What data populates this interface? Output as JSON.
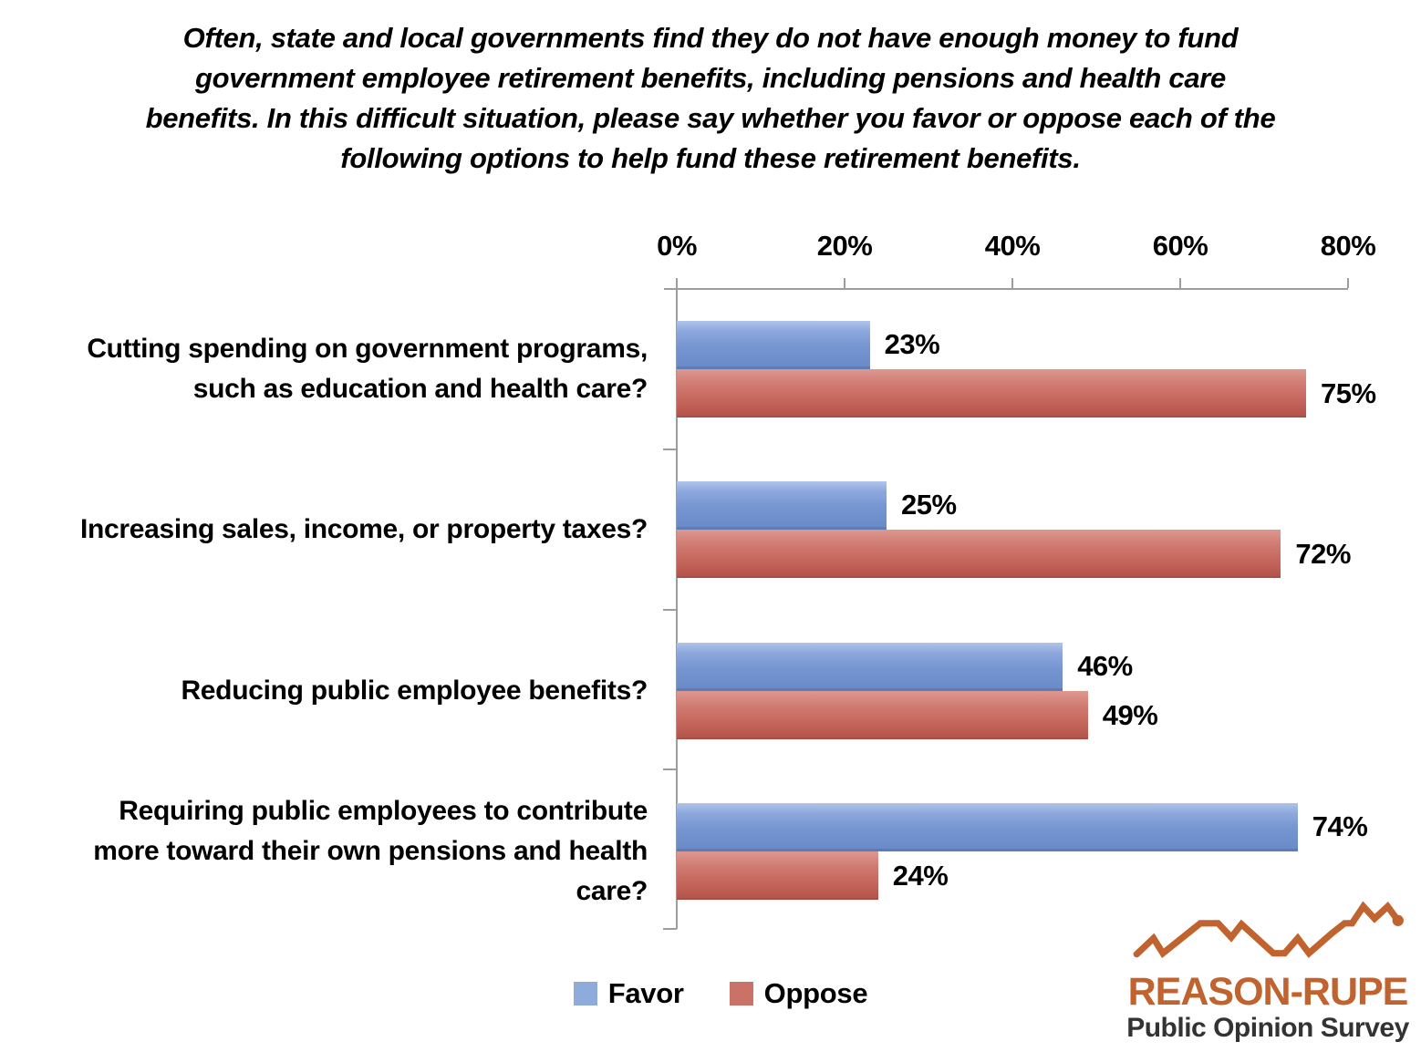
{
  "title_lines": [
    "Often, state and local governments find they do not have enough money to fund",
    "government employee retirement benefits, including pensions and health care",
    "benefits.  In this difficult situation, please say whether you favor or oppose each of the",
    "following options to help fund these retirement benefits."
  ],
  "chart_data": {
    "type": "bar",
    "orientation": "horizontal",
    "categories": [
      "Cutting spending on government programs, such as education and health care?",
      "Increasing sales, income, or property taxes?",
      "Reducing public employee benefits?",
      "Requiring public employees to contribute more toward their own pensions and health care?"
    ],
    "category_lines": [
      [
        "Cutting spending on government programs,",
        "such as education and health care?"
      ],
      [
        "Increasing sales, income, or property taxes?"
      ],
      [
        "Reducing public employee benefits?"
      ],
      [
        "Requiring public employees to contribute",
        "more toward their own pensions and health",
        "care?"
      ]
    ],
    "series": [
      {
        "name": "Favor",
        "values": [
          23,
          25,
          46,
          74
        ],
        "color": "#7e9cd4",
        "label_format": "percent"
      },
      {
        "name": "Oppose",
        "values": [
          75,
          72,
          49,
          24
        ],
        "color": "#c96a61",
        "label_format": "percent"
      }
    ],
    "value_labels": {
      "Favor": [
        "23%",
        "25%",
        "46%",
        "74%"
      ],
      "Oppose": [
        "75%",
        "72%",
        "49%",
        "24%"
      ]
    },
    "x_axis": {
      "position": "top",
      "ticks": [
        0,
        20,
        40,
        60,
        80
      ],
      "tick_labels": [
        "0%",
        "20%",
        "40%",
        "60%",
        "80%"
      ],
      "range": [
        0,
        80
      ]
    },
    "grid": false,
    "legend": {
      "position": "bottom",
      "entries": [
        {
          "label": "Favor",
          "color": "#8fabdc"
        },
        {
          "label": "Oppose",
          "color": "#ca7268"
        }
      ]
    }
  },
  "logo": {
    "title": "REASON-RUPE",
    "subtitle": "Public Opinion Survey",
    "accent_color": "#c0632e"
  },
  "colors": {
    "favor_bar": "#7e9cd4",
    "oppose_bar": "#c96a61",
    "axis": "#9d9d9d",
    "text": "#000000",
    "logo_orange": "#c0632e",
    "logo_subtitle": "#333333"
  }
}
